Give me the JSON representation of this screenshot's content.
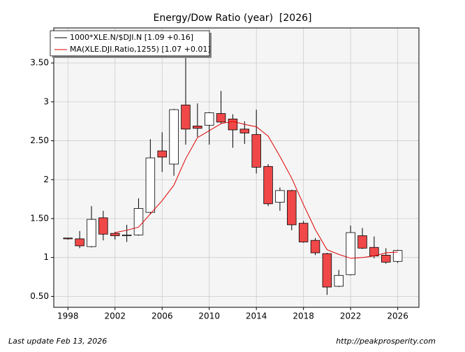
{
  "chart_data": {
    "type": "candlestick",
    "title": "Energy/Dow Ratio (year)  [2026]",
    "x": [
      1998,
      1999,
      2000,
      2001,
      2002,
      2003,
      2004,
      2005,
      2006,
      2007,
      2008,
      2009,
      2010,
      2011,
      2012,
      2013,
      2014,
      2015,
      2016,
      2017,
      2018,
      2019,
      2020,
      2021,
      2022,
      2023,
      2024,
      2025,
      2026
    ],
    "xlim": [
      1996.8,
      2027.8
    ],
    "xticks": [
      1998,
      2002,
      2006,
      2010,
      2014,
      2018,
      2022,
      2026
    ],
    "ylim": [
      0.36,
      3.95
    ],
    "yticks": [
      {
        "value": 0.5,
        "label": "0.50"
      },
      1,
      {
        "value": 1.5,
        "label": "1.50"
      },
      2,
      {
        "value": 2.5,
        "label": "2.50"
      },
      3,
      {
        "value": 3.5,
        "label": "3.50"
      }
    ],
    "grid": true,
    "legend": "upper left",
    "series": [
      {
        "name": "1000*XLE.N/$DJI.N [1.09 +0.16]",
        "color": "#000000",
        "up_color": "#ffffff",
        "down_color": "#f04848",
        "open": [
          1.25,
          1.24,
          1.14,
          1.51,
          1.31,
          1.28,
          1.29,
          1.58,
          2.37,
          2.2,
          2.96,
          2.69,
          2.7,
          2.85,
          2.78,
          2.65,
          2.58,
          2.17,
          1.71,
          1.86,
          1.44,
          1.22,
          1.05,
          0.63,
          0.78,
          1.28,
          1.13,
          1.03,
          0.95
        ],
        "high": [
          1.25,
          1.34,
          1.66,
          1.6,
          1.33,
          1.42,
          1.76,
          2.52,
          2.61,
          2.91,
          3.65,
          2.98,
          2.87,
          3.14,
          2.84,
          2.75,
          2.9,
          2.2,
          1.9,
          1.87,
          1.47,
          1.25,
          1.06,
          0.84,
          1.41,
          1.38,
          1.27,
          1.12,
          1.1
        ],
        "low": [
          1.23,
          1.12,
          1.13,
          1.22,
          1.23,
          1.2,
          1.28,
          1.56,
          2.1,
          2.05,
          2.45,
          2.55,
          2.45,
          2.72,
          2.41,
          2.46,
          2.08,
          1.66,
          1.6,
          1.35,
          1.19,
          1.03,
          0.52,
          0.62,
          0.77,
          1.11,
          0.99,
          0.92,
          0.93
        ],
        "close": [
          1.24,
          1.15,
          1.49,
          1.3,
          1.28,
          1.29,
          1.63,
          2.28,
          2.29,
          2.9,
          2.65,
          2.66,
          2.86,
          2.74,
          2.64,
          2.6,
          2.16,
          1.69,
          1.86,
          1.42,
          1.2,
          1.06,
          0.62,
          0.77,
          1.32,
          1.12,
          1.02,
          0.94,
          1.09
        ]
      },
      {
        "name": "MA(XLE.DJI.Ratio,1255) [1.07 +0.01]",
        "color": "#e00000",
        "values": [
          null,
          null,
          null,
          null,
          1.32,
          1.35,
          1.39,
          1.56,
          1.73,
          1.93,
          2.27,
          2.54,
          2.63,
          2.72,
          2.75,
          2.71,
          2.68,
          2.56,
          2.3,
          2.02,
          1.68,
          1.36,
          1.1,
          1.04,
          0.99,
          1.0,
          1.02,
          1.06,
          1.07
        ]
      }
    ]
  },
  "footer": {
    "left": "Last update Feb 13, 2026",
    "right": "http://peakprosperity.com"
  }
}
